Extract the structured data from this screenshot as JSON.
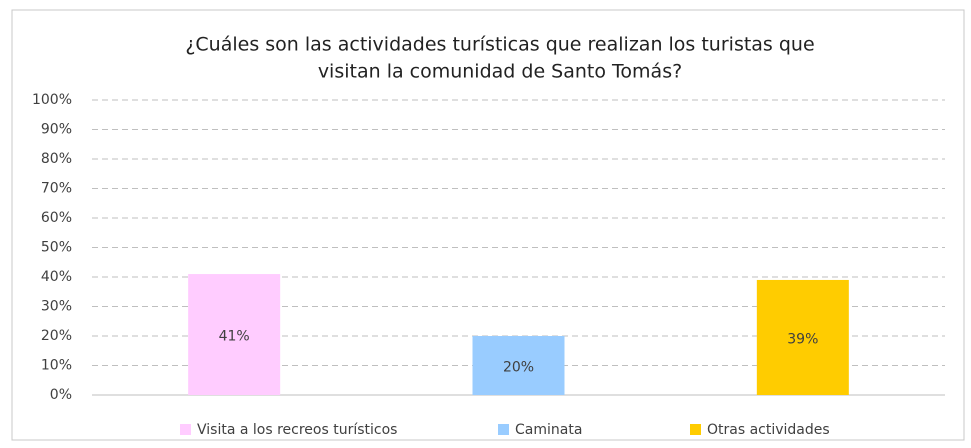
{
  "chart_data": {
    "type": "bar",
    "title": [
      "¿Cuáles son las actividades turísticas que realizan los turistas que",
      "visitan la comunidad de Santo Tomás?"
    ],
    "categories": [
      "Visita a los recreos turísticos",
      "Caminata",
      "Otras actividades"
    ],
    "values": [
      41,
      20,
      39
    ],
    "value_labels": [
      "41%",
      "20%",
      "39%"
    ],
    "colors": [
      "#ffccff",
      "#99ccff",
      "#ffcc00"
    ],
    "ylim": [
      0,
      100
    ],
    "yticks": [
      {
        "value": 0,
        "label": "0%"
      },
      {
        "value": 10,
        "label": "10%"
      },
      {
        "value": 20,
        "label": "20%"
      },
      {
        "value": 30,
        "label": "30%"
      },
      {
        "value": 40,
        "label": "40%"
      },
      {
        "value": 50,
        "label": "50%"
      },
      {
        "value": 60,
        "label": "60%"
      },
      {
        "value": 70,
        "label": "70%"
      },
      {
        "value": 80,
        "label": "80%"
      },
      {
        "value": 90,
        "label": "90%"
      },
      {
        "value": 100,
        "label": "100%"
      }
    ],
    "grid": true,
    "legend": "bottom"
  }
}
